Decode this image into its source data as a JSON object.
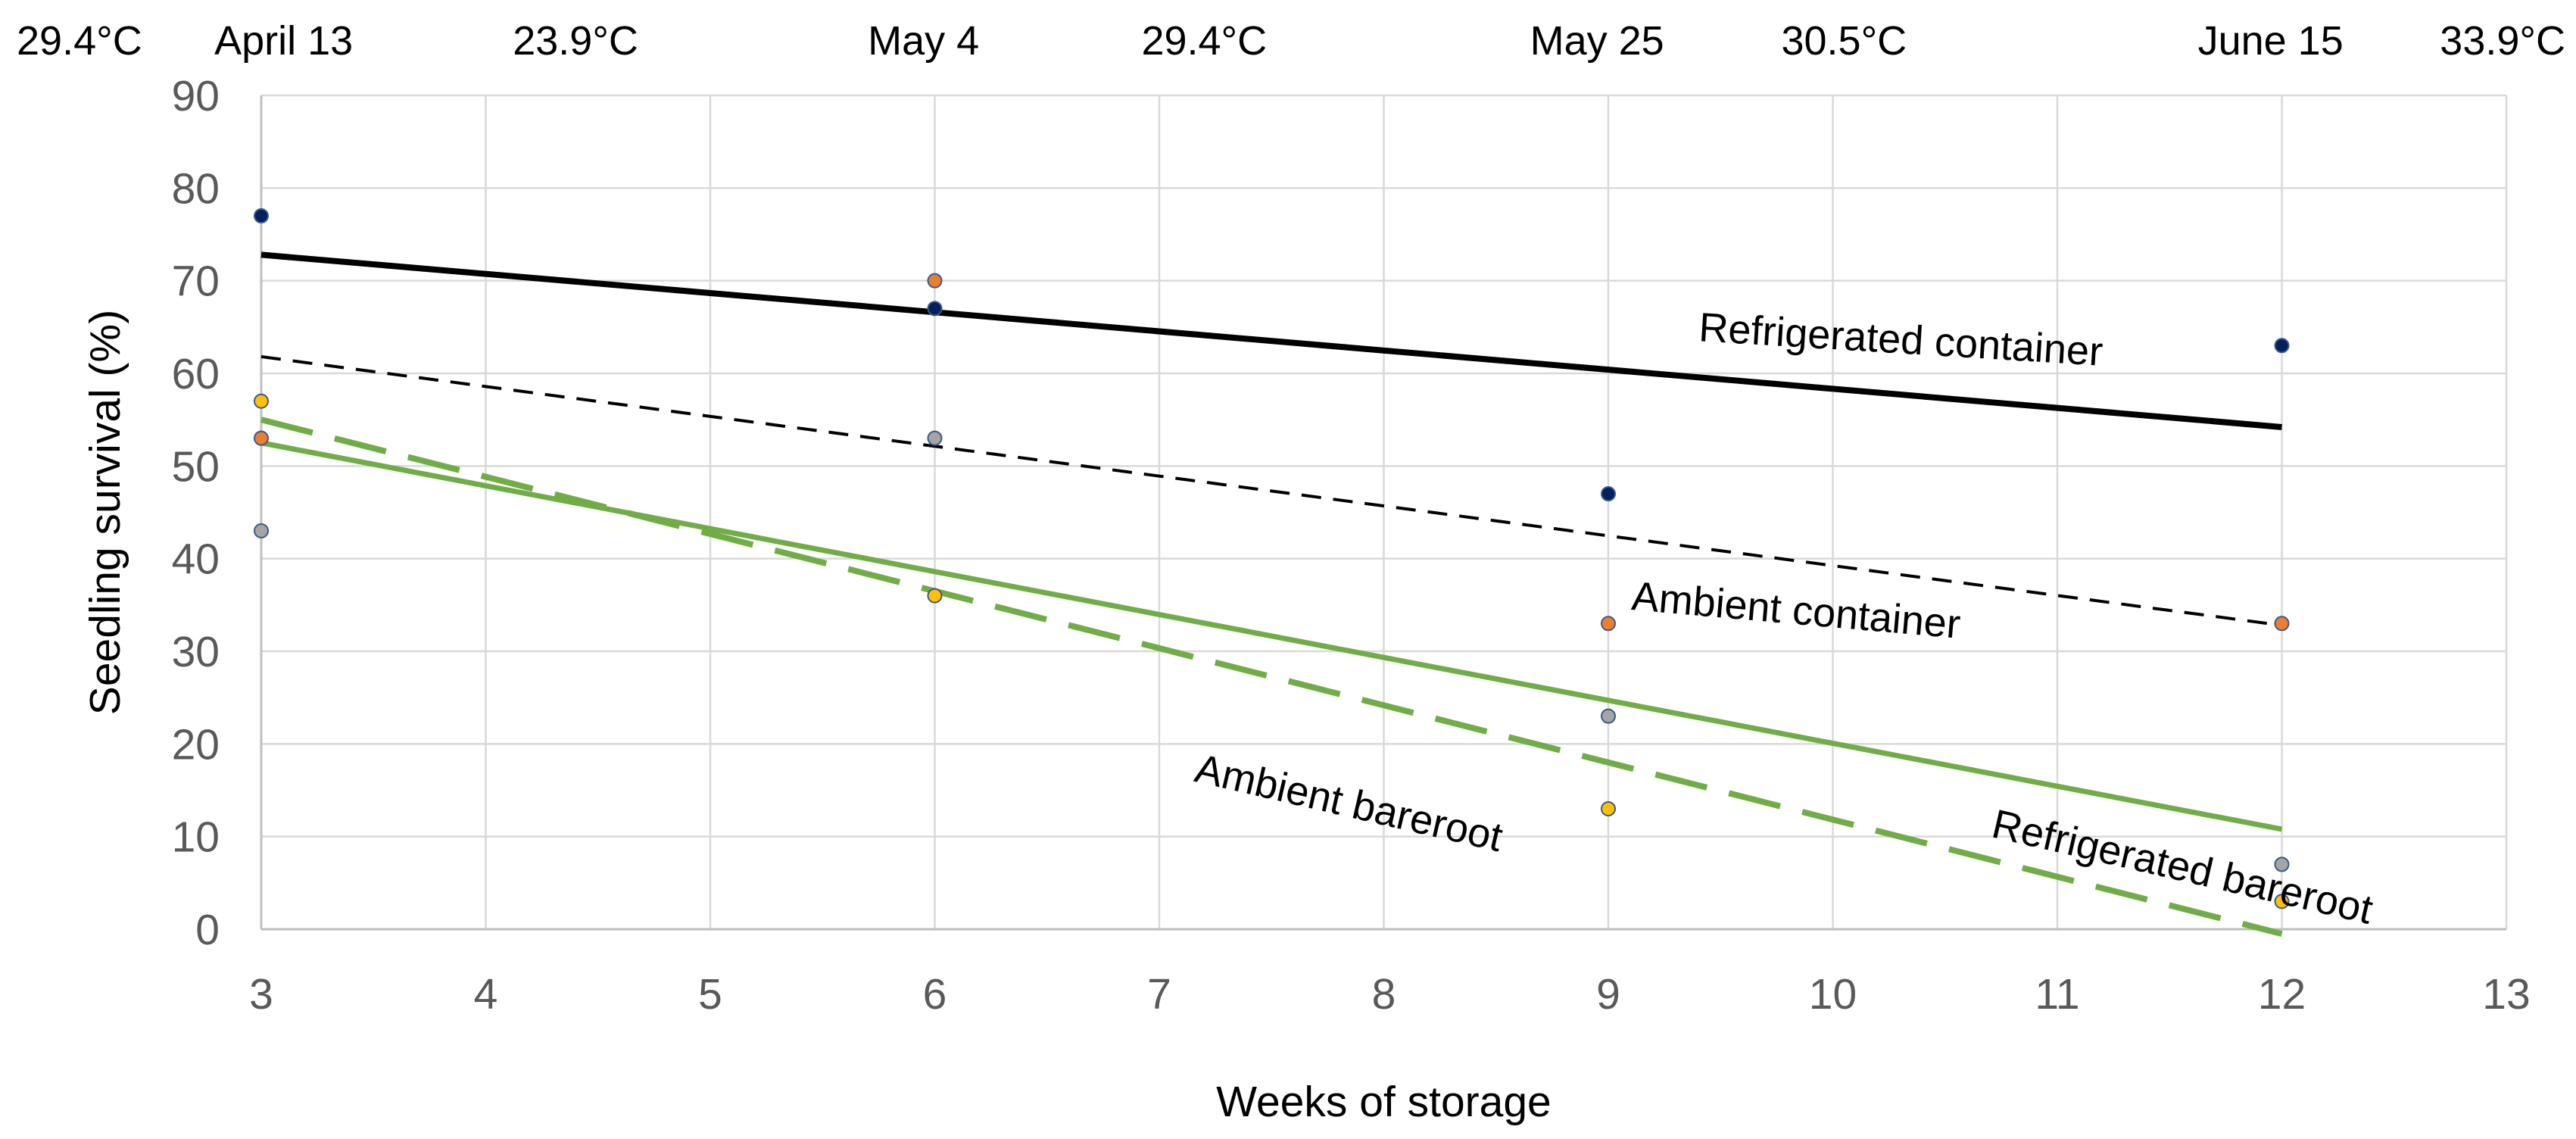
{
  "chart_data": {
    "type": "scatter",
    "xlabel": "Weeks of storage",
    "ylabel": "Seedling survival (%)",
    "xlim": [
      3,
      13
    ],
    "ylim": [
      0,
      90
    ],
    "x_ticks": [
      "3",
      "4",
      "5",
      "6",
      "7",
      "8",
      "9",
      "10",
      "11",
      "12",
      "13"
    ],
    "y_ticks": [
      "0",
      "10",
      "20",
      "30",
      "40",
      "50",
      "60",
      "70",
      "80",
      "90"
    ],
    "top_annotations": [
      {
        "x": 2.3,
        "text": "29.4°C"
      },
      {
        "x": 3.1,
        "text": "April 13"
      },
      {
        "x": 4.4,
        "text": "23.9°C"
      },
      {
        "x": 5.95,
        "text": "May 4"
      },
      {
        "x": 7.2,
        "text": "29.4°C"
      },
      {
        "x": 8.95,
        "text": "May 25"
      },
      {
        "x": 10.05,
        "text": "30.5°C"
      },
      {
        "x": 11.95,
        "text": "June 15"
      },
      {
        "x": 13.0,
        "text": "33.9°C"
      }
    ],
    "series": [
      {
        "name": "Refrigerated container",
        "color": "#002060",
        "x": [
          3,
          6,
          9,
          12
        ],
        "values": [
          77,
          67,
          47,
          63
        ],
        "trend": {
          "x": [
            3,
            12
          ],
          "y": [
            72.8,
            54.2
          ],
          "color": "#000000",
          "style": "solid",
          "width": 8
        },
        "label": {
          "text": "Refrigerated container",
          "x": 9.4,
          "y": 63.5,
          "angle": 3.5
        }
      },
      {
        "name": "Ambient container",
        "color": "#ed7d31",
        "x": [
          3,
          6,
          9,
          12
        ],
        "values": [
          53,
          70,
          33,
          33
        ],
        "trend": {
          "x": [
            3,
            12
          ],
          "y": [
            61.8,
            32.8
          ],
          "color": "#000000",
          "style": "dashed",
          "width": 4
        },
        "label": {
          "text": "Ambient container",
          "x": 9.1,
          "y": 34.5,
          "angle": 5
        }
      },
      {
        "name": "Refrigerated bareroot",
        "color": "#a5a5a5",
        "x": [
          3,
          6,
          9,
          12
        ],
        "values": [
          43,
          53,
          23,
          7
        ],
        "trend": {
          "x": [
            3,
            12
          ],
          "y": [
            52.5,
            10.8
          ],
          "color": "#70ad47",
          "style": "solid",
          "width": 7
        },
        "label": {
          "text": "Refrigerated bareroot",
          "x": 10.7,
          "y": 10.0,
          "angle": 13
        }
      },
      {
        "name": "Ambient bareroot",
        "color": "#ffc000",
        "x": [
          3,
          6,
          9,
          12
        ],
        "values": [
          57,
          36,
          13,
          3
        ],
        "trend": {
          "x": [
            3,
            12
          ],
          "y": [
            55.0,
            -0.5
          ],
          "color": "#70ad47",
          "style": "dashed",
          "width": 8
        },
        "label": {
          "text": "Ambient bareroot",
          "x": 7.15,
          "y": 16.0,
          "angle": 13
        }
      }
    ]
  }
}
